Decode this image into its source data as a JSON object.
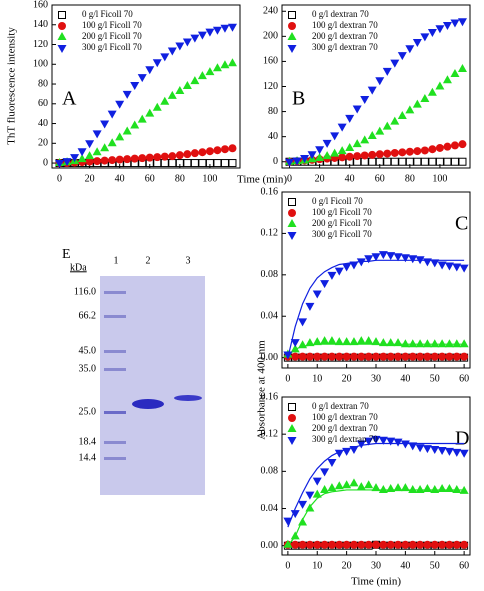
{
  "chart_data": [
    {
      "type": "scatter",
      "panel": "A",
      "ylabel": "ThT fluorescence intensity",
      "xlabel": "Time (min)",
      "x": [
        0,
        5,
        10,
        15,
        20,
        25,
        30,
        35,
        40,
        45,
        50,
        55,
        60,
        65,
        70,
        75,
        80,
        85,
        90,
        95,
        100,
        105,
        110,
        115
      ],
      "xlim": [
        -5,
        120
      ],
      "xticks": [
        0,
        20,
        40,
        60,
        80,
        100
      ],
      "ylim": [
        -5,
        160
      ],
      "yticks": [
        0,
        20,
        40,
        60,
        80,
        100,
        120,
        140,
        160
      ],
      "series": [
        {
          "name": "0 g/l Ficoll 70",
          "color": "#000000",
          "marker": "square-open",
          "values": [
            0,
            0,
            0,
            0,
            0,
            0,
            0,
            0,
            0,
            0,
            0,
            0,
            0,
            0,
            0,
            0,
            0,
            0,
            0,
            0,
            0,
            0,
            0,
            0
          ]
        },
        {
          "name": "100 g/l Ficoll 70",
          "color": "#e01010",
          "marker": "circle",
          "values": [
            0,
            0,
            0.5,
            1,
            1.5,
            2,
            2.5,
            3,
            3.5,
            4,
            4.5,
            5,
            5.5,
            6,
            6.5,
            7,
            8,
            9,
            10,
            11,
            12,
            13,
            14,
            15
          ]
        },
        {
          "name": "200 g/l Ficoll 70",
          "color": "#20e020",
          "marker": "triangle-up",
          "values": [
            0,
            1,
            2,
            4,
            7,
            11,
            15,
            20,
            26,
            32,
            38,
            44,
            50,
            56,
            62,
            68,
            73,
            78,
            83,
            88,
            92,
            96,
            99,
            101
          ]
        },
        {
          "name": "300 g/l Ficoll 70",
          "color": "#1020e0",
          "marker": "triangle-down",
          "values": [
            0,
            2,
            6,
            12,
            20,
            30,
            40,
            50,
            60,
            70,
            79,
            87,
            95,
            102,
            108,
            114,
            119,
            123,
            127,
            130,
            133,
            135,
            137,
            138
          ]
        }
      ]
    },
    {
      "type": "scatter",
      "panel": "B",
      "x": [
        0,
        5,
        10,
        15,
        20,
        25,
        30,
        35,
        40,
        45,
        50,
        55,
        60,
        65,
        70,
        75,
        80,
        85,
        90,
        95,
        100,
        105,
        110,
        115
      ],
      "xlim": [
        -5,
        120
      ],
      "xticks": [
        0,
        20,
        40,
        60,
        80,
        100
      ],
      "ylim": [
        -10,
        250
      ],
      "yticks": [
        0,
        40,
        80,
        120,
        160,
        200,
        240
      ],
      "series": [
        {
          "name": "0 g/l dextran 70",
          "color": "#000000",
          "marker": "square-open",
          "values": [
            0,
            0,
            0,
            0,
            0,
            0,
            0,
            0,
            0,
            0,
            0,
            0,
            0,
            0,
            0,
            0,
            0,
            0,
            0,
            0,
            0,
            0,
            0,
            0
          ]
        },
        {
          "name": "100 g/l dextran 70",
          "color": "#e01010",
          "marker": "circle",
          "values": [
            0,
            1,
            2,
            3,
            4,
            5,
            6,
            7,
            8,
            9,
            10,
            11,
            12,
            13,
            14,
            15,
            16,
            17,
            18,
            20,
            22,
            24,
            26,
            28
          ]
        },
        {
          "name": "200 g/l dextran 70",
          "color": "#20e020",
          "marker": "triangle-up",
          "values": [
            0,
            1,
            2,
            4,
            6,
            9,
            13,
            17,
            22,
            28,
            34,
            41,
            48,
            56,
            64,
            73,
            82,
            91,
            100,
            110,
            120,
            130,
            140,
            148
          ]
        },
        {
          "name": "300 g/l dextran 70",
          "color": "#1020e0",
          "marker": "triangle-down",
          "values": [
            0,
            2,
            6,
            12,
            20,
            30,
            42,
            56,
            70,
            85,
            100,
            115,
            130,
            145,
            158,
            170,
            181,
            191,
            200,
            207,
            213,
            218,
            222,
            224
          ]
        }
      ]
    },
    {
      "type": "scatter",
      "panel": "C",
      "ylabel": "Absorbance at 400 nm",
      "x": [
        0,
        2.5,
        5,
        7.5,
        10,
        12.5,
        15,
        17.5,
        20,
        22.5,
        25,
        27.5,
        30,
        32.5,
        35,
        37.5,
        40,
        42.5,
        45,
        47.5,
        50,
        52.5,
        55,
        57.5,
        60
      ],
      "xlim": [
        -2,
        62
      ],
      "xticks": [
        0,
        10,
        20,
        30,
        40,
        50,
        60
      ],
      "ylim": [
        -0.01,
        0.16
      ],
      "yticks": [
        {
          "value": 0,
          "label": "0.00"
        },
        {
          "value": 0.04,
          "label": "0.04"
        },
        {
          "value": 0.08,
          "label": "0.08"
        },
        {
          "value": 0.12,
          "label": "0.12"
        },
        {
          "value": 0.16,
          "label": "0.16"
        }
      ],
      "series": [
        {
          "name": "0 g/l Ficoll 70",
          "color": "#000000",
          "marker": "square-open",
          "values": [
            0,
            0,
            0,
            0,
            0,
            0,
            0,
            0,
            0,
            0,
            0,
            0,
            0,
            0,
            0,
            0,
            0,
            0,
            0,
            0,
            0,
            0,
            0,
            0,
            0
          ]
        },
        {
          "name": "100 g/l Ficoll 70",
          "color": "#e01010",
          "marker": "circle",
          "values": [
            0.001,
            0.001,
            0.001,
            0.001,
            0.001,
            0.001,
            0.001,
            0.001,
            0.001,
            0.001,
            0.001,
            0.001,
            0.001,
            0.001,
            0.001,
            0.001,
            0.001,
            0.001,
            0.001,
            0.001,
            0.001,
            0.001,
            0.001,
            0.001,
            0.001
          ]
        },
        {
          "name": "200 g/l Ficoll 70",
          "color": "#20e020",
          "marker": "triangle-up",
          "values": [
            0.003,
            0.008,
            0.012,
            0.014,
            0.015,
            0.016,
            0.016,
            0.015,
            0.015,
            0.015,
            0.016,
            0.016,
            0.015,
            0.014,
            0.014,
            0.014,
            0.013,
            0.013,
            0.013,
            0.013,
            0.013,
            0.013,
            0.013,
            0.013,
            0.013
          ],
          "fit": [
            0.002,
            0.008,
            0.011,
            0.012,
            0.013,
            0.013,
            0.013,
            0.013,
            0.013,
            0.013,
            0.013,
            0.013,
            0.013,
            0.013,
            0.013,
            0.013,
            0.013,
            0.013,
            0.013,
            0.013,
            0.013,
            0.013,
            0.013,
            0.013,
            0.013
          ]
        },
        {
          "name": "300 g/l Ficoll 70",
          "color": "#1020e0",
          "marker": "triangle-down",
          "values": [
            0.003,
            0.015,
            0.035,
            0.05,
            0.062,
            0.072,
            0.08,
            0.084,
            0.088,
            0.09,
            0.093,
            0.096,
            0.098,
            0.1,
            0.099,
            0.098,
            0.097,
            0.096,
            0.095,
            0.093,
            0.092,
            0.09,
            0.089,
            0.088,
            0.087
          ],
          "fit": [
            0,
            0.03,
            0.052,
            0.067,
            0.077,
            0.083,
            0.087,
            0.09,
            0.091,
            0.092,
            0.093,
            0.093,
            0.094,
            0.094,
            0.094,
            0.094,
            0.094,
            0.094,
            0.094,
            0.094,
            0.094,
            0.094,
            0.094,
            0.094,
            0.094
          ]
        }
      ]
    },
    {
      "type": "scatter",
      "panel": "D",
      "xlabel": "Time (min)",
      "x": [
        0,
        2.5,
        5,
        7.5,
        10,
        12.5,
        15,
        17.5,
        20,
        22.5,
        25,
        27.5,
        30,
        32.5,
        35,
        37.5,
        40,
        42.5,
        45,
        47.5,
        50,
        52.5,
        55,
        57.5,
        60
      ],
      "xlim": [
        -2,
        62
      ],
      "xticks": [
        0,
        10,
        20,
        30,
        40,
        50,
        60
      ],
      "ylim": [
        -0.01,
        0.16
      ],
      "yticks": [
        {
          "value": 0,
          "label": "0.00"
        },
        {
          "value": 0.04,
          "label": "0.04"
        },
        {
          "value": 0.08,
          "label": "0.08"
        },
        {
          "value": 0.12,
          "label": "0.12"
        },
        {
          "value": 0.16,
          "label": "0.16"
        }
      ],
      "series": [
        {
          "name": "0 g/l dextran 70",
          "color": "#000000",
          "marker": "square-open",
          "values": [
            0,
            0,
            0,
            0,
            0,
            0,
            0,
            0,
            0,
            0,
            0,
            0,
            0.001,
            0,
            0,
            0,
            0,
            0,
            0,
            0,
            0,
            0,
            0,
            0,
            0
          ]
        },
        {
          "name": "100 g/l dextran 70",
          "color": "#e01010",
          "marker": "circle",
          "values": [
            0.001,
            0.001,
            0.001,
            0.001,
            0.001,
            0.001,
            0.001,
            0.001,
            0.001,
            0.001,
            0.001,
            0.001,
            0.001,
            0.001,
            0.001,
            0.001,
            0.001,
            0.001,
            0.001,
            0.001,
            0.001,
            0.001,
            0.001,
            0.001,
            0.001
          ]
        },
        {
          "name": "200 g/l dextran 70",
          "color": "#20e020",
          "marker": "triangle-up",
          "values": [
            0.001,
            0.01,
            0.025,
            0.04,
            0.055,
            0.06,
            0.062,
            0.064,
            0.065,
            0.067,
            0.063,
            0.065,
            0.062,
            0.06,
            0.061,
            0.062,
            0.062,
            0.06,
            0.06,
            0.061,
            0.06,
            0.061,
            0.061,
            0.06,
            0.059
          ],
          "fit": [
            0,
            0.01,
            0.028,
            0.042,
            0.051,
            0.056,
            0.058,
            0.059,
            0.06,
            0.06,
            0.06,
            0.06,
            0.06,
            0.06,
            0.06,
            0.06,
            0.06,
            0.06,
            0.06,
            0.06,
            0.06,
            0.06,
            0.06,
            0.06,
            0.06
          ]
        },
        {
          "name": "300 g/l dextran 70",
          "color": "#1020e0",
          "marker": "triangle-down",
          "values": [
            0.027,
            0.035,
            0.045,
            0.055,
            0.07,
            0.08,
            0.09,
            0.1,
            0.102,
            0.104,
            0.11,
            0.113,
            0.115,
            0.114,
            0.113,
            0.112,
            0.11,
            0.108,
            0.106,
            0.105,
            0.104,
            0.103,
            0.102,
            0.101,
            0.1
          ],
          "fit": [
            0.02,
            0.04,
            0.057,
            0.072,
            0.083,
            0.091,
            0.097,
            0.101,
            0.104,
            0.106,
            0.108,
            0.109,
            0.11,
            0.11,
            0.11,
            0.11,
            0.11,
            0.11,
            0.11,
            0.11,
            0.11,
            0.11,
            0.11,
            0.11,
            0.11
          ]
        }
      ]
    }
  ],
  "gel": {
    "label": "E",
    "unit": "kDa",
    "lanes": [
      "1",
      "2",
      "3"
    ],
    "markers": [
      "116.0",
      "66.2",
      "45.0",
      "35.0",
      "25.0",
      "18.4",
      "14.4"
    ]
  }
}
